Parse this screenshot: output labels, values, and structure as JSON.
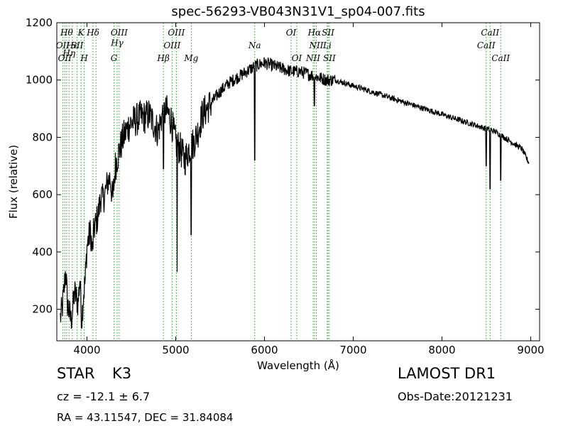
{
  "chart_data": {
    "type": "line",
    "title": "spec-56293-VB043N31V1_sp04-007.fits",
    "xlabel": "Wavelength (Å)",
    "ylabel": "Flux (relative)",
    "xlim": [
      3660,
      9100
    ],
    "ylim": [
      90,
      1200
    ],
    "x_ticks": [
      4000,
      5000,
      6000,
      7000,
      8000,
      9000
    ],
    "y_ticks": [
      200,
      400,
      600,
      800,
      1000,
      1200
    ],
    "x_tick_labels": [
      "4000",
      "5000",
      "6000",
      "7000",
      "8000",
      "9000"
    ],
    "y_tick_labels": [
      "200",
      "400",
      "600",
      "800",
      "1000",
      "1200"
    ],
    "grid": false,
    "line_color": "#000000",
    "marker_color": "#2ca02c",
    "series": [
      {
        "x": [
          3700,
          3720,
          3740,
          3760,
          3780,
          3800,
          3820,
          3840,
          3860,
          3880,
          3900,
          3920,
          3940,
          3960,
          3980,
          4000,
          4020,
          4040,
          4060,
          4080,
          4100,
          4120,
          4140,
          4160,
          4180,
          4200,
          4230,
          4260,
          4290,
          4320,
          4350,
          4380,
          4410,
          4440,
          4470,
          4500,
          4550,
          4600,
          4650,
          4700,
          4750,
          4800,
          4850,
          4900,
          4950,
          5000,
          5050,
          5100,
          5150,
          5200,
          5250,
          5300,
          5400,
          5500,
          5600,
          5700,
          5800,
          5900,
          6000,
          6100,
          6200,
          6300,
          6400,
          6500,
          6600,
          6700,
          6800,
          6900,
          7000,
          7200,
          7400,
          7600,
          7800,
          8000,
          8200,
          8400,
          8600,
          8700,
          8800,
          8900,
          8980
        ],
        "y": [
          170,
          200,
          260,
          340,
          220,
          190,
          160,
          200,
          260,
          240,
          220,
          310,
          160,
          250,
          300,
          420,
          450,
          470,
          400,
          480,
          500,
          520,
          560,
          600,
          580,
          600,
          640,
          660,
          580,
          700,
          740,
          770,
          800,
          820,
          840,
          850,
          860,
          870,
          870,
          880,
          850,
          820,
          880,
          890,
          860,
          780,
          760,
          720,
          760,
          780,
          820,
          880,
          920,
          960,
          990,
          1010,
          1030,
          1050,
          1060,
          1050,
          1040,
          1030,
          1030,
          1020,
          1010,
          1000,
          1000,
          990,
          980,
          960,
          940,
          920,
          900,
          880,
          860,
          840,
          820,
          800,
          780,
          760,
          710
        ],
        "label": ""
      }
    ],
    "features": [
      {
        "x": 5890,
        "y": 720
      },
      {
        "x": 4861,
        "y": 690
      },
      {
        "x": 5016,
        "y": 330
      },
      {
        "x": 5175,
        "y": 460
      },
      {
        "x": 6563,
        "y": 910
      },
      {
        "x": 8498,
        "y": 700
      },
      {
        "x": 8542,
        "y": 620
      },
      {
        "x": 8662,
        "y": 650
      }
    ],
    "lines": [
      {
        "x": 3727,
        "label": "OII",
        "row": 2
      },
      {
        "x": 3750,
        "label": "OII",
        "row": 3
      },
      {
        "x": 3771,
        "label": "Hθ",
        "row": 1
      },
      {
        "x": 3798,
        "label": "Hη",
        "row": 2.6
      },
      {
        "x": 3835,
        "label": "Hε",
        "row": 2
      },
      {
        "x": 3933,
        "label": "K",
        "row": 1
      },
      {
        "x": 3969,
        "label": "H",
        "row": 3
      },
      {
        "x": 3889,
        "label": "SII",
        "row": 2
      },
      {
        "x": 4068,
        "label": "Hδ",
        "row": 1
      },
      {
        "x": 4102,
        "label": "",
        "row": 0
      },
      {
        "x": 4304,
        "label": "G",
        "row": 3
      },
      {
        "x": 4340,
        "label": "Hγ",
        "row": 1.8
      },
      {
        "x": 4363,
        "label": "OIII",
        "row": 1
      },
      {
        "x": 4861,
        "label": "Hβ",
        "row": 3
      },
      {
        "x": 4959,
        "label": "OIII",
        "row": 2
      },
      {
        "x": 5007,
        "label": "OIII",
        "row": 1
      },
      {
        "x": 5175,
        "label": "Mg",
        "row": 3
      },
      {
        "x": 5890,
        "label": "Na",
        "row": 2
      },
      {
        "x": 6300,
        "label": "OI",
        "row": 1
      },
      {
        "x": 6364,
        "label": "OI",
        "row": 3
      },
      {
        "x": 6548,
        "label": "NII",
        "row": 3
      },
      {
        "x": 6563,
        "label": "Hα",
        "row": 1
      },
      {
        "x": 6584,
        "label": "NII",
        "row": 2
      },
      {
        "x": 6707,
        "label": "Li",
        "row": 2
      },
      {
        "x": 6716,
        "label": "SII",
        "row": 1
      },
      {
        "x": 6731,
        "label": "SII",
        "row": 3
      },
      {
        "x": 8498,
        "label": "CaII",
        "row": 2
      },
      {
        "x": 8542,
        "label": "CaII",
        "row": 1
      },
      {
        "x": 8662,
        "label": "CaII",
        "row": 3
      }
    ]
  },
  "info": {
    "object_class": "STAR",
    "subclass": "K3",
    "redshift": "cz = -12.1 ± 6.7",
    "survey": "LAMOST DR1",
    "obs_date": "Obs-Date:20121231",
    "coords": "RA = 43.11547, DEC = 31.84084"
  }
}
